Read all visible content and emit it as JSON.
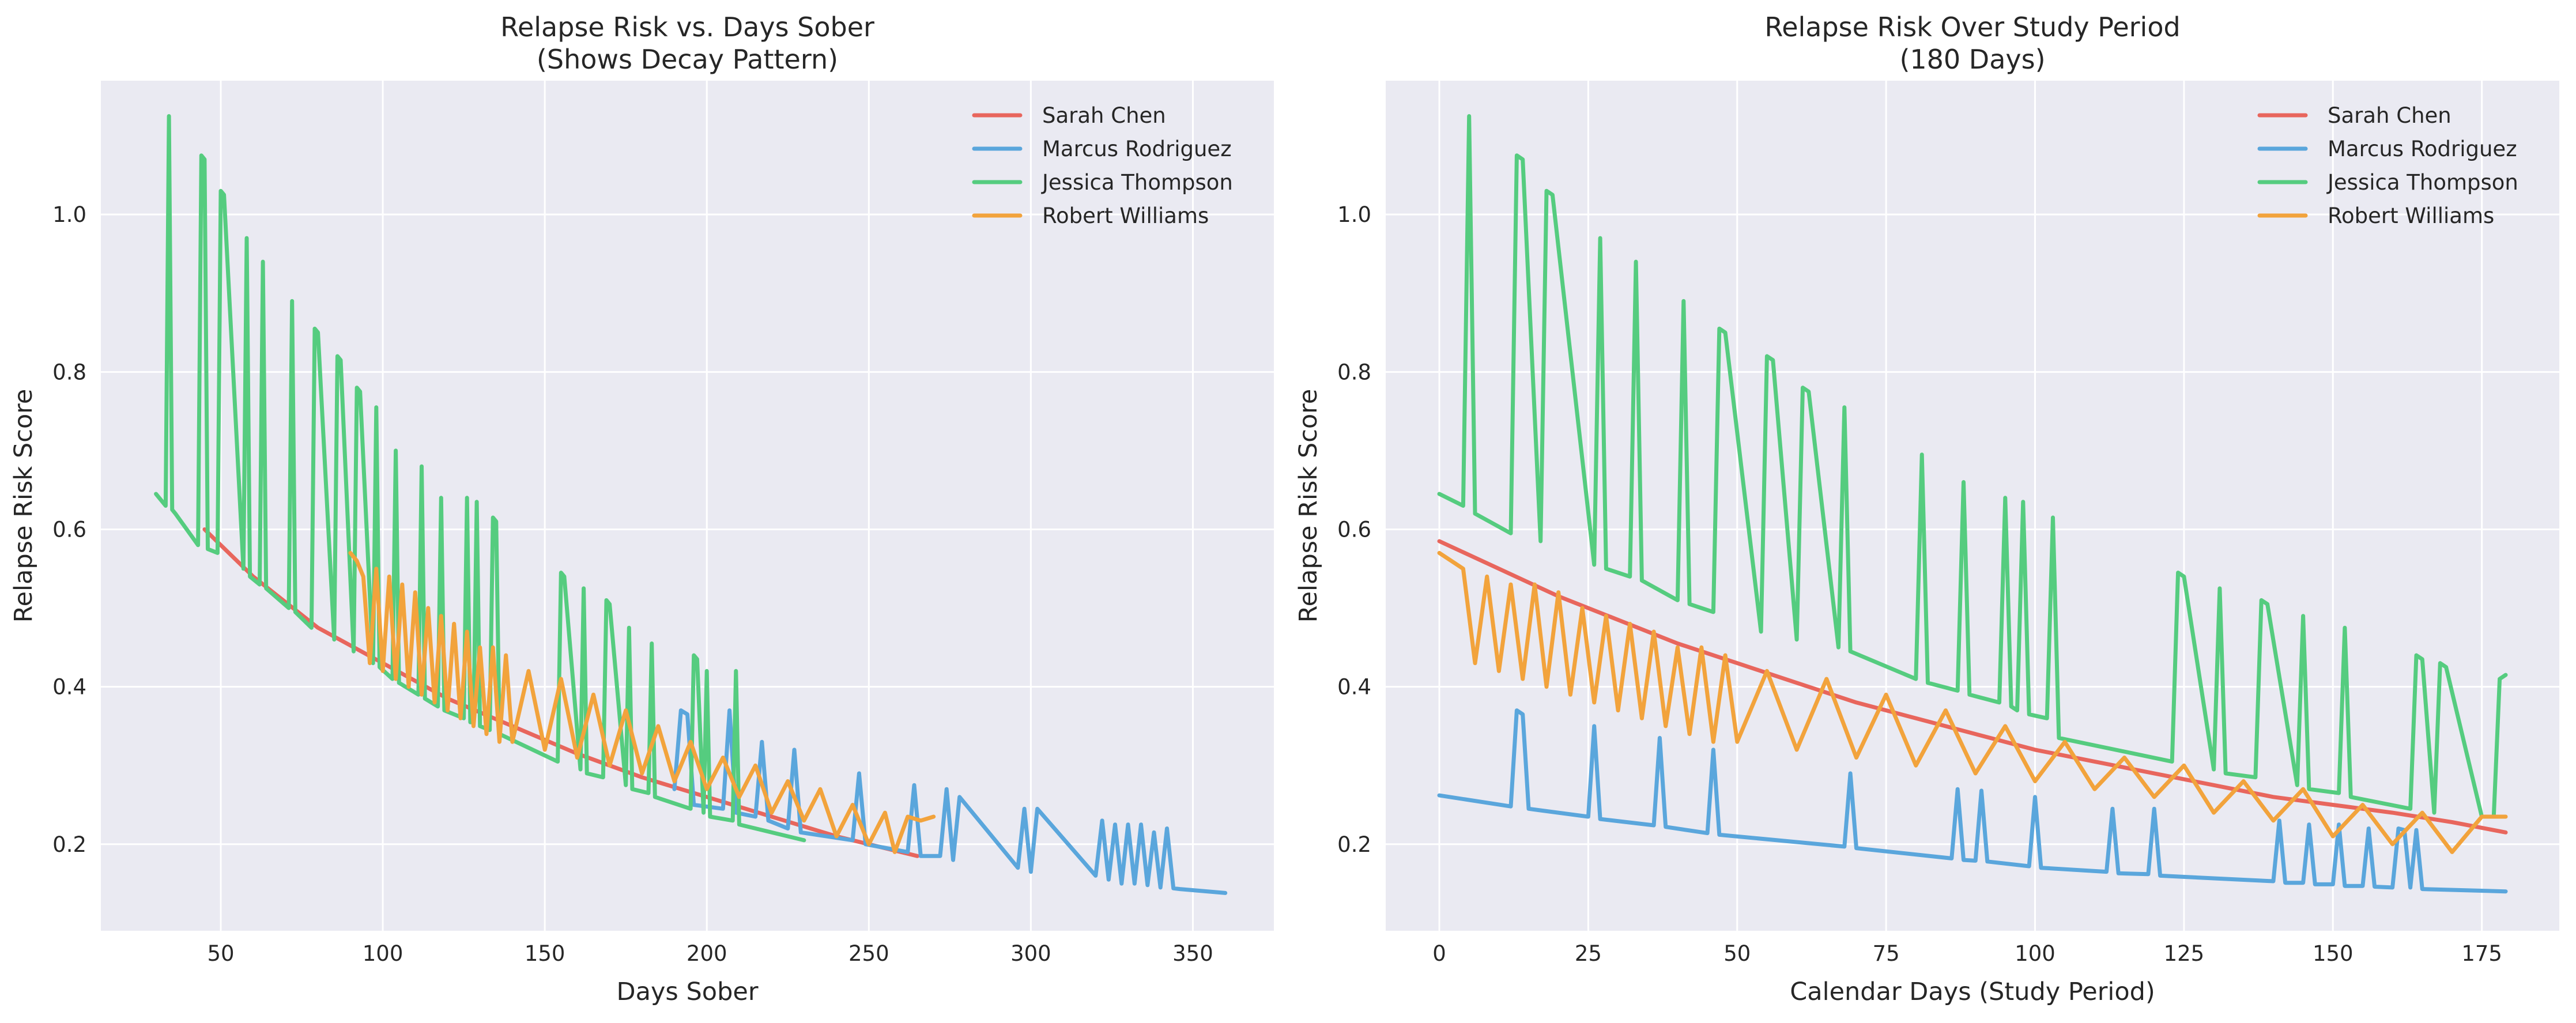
{
  "chart_data": [
    {
      "type": "line",
      "title": "Relapse Risk vs. Days Sober\n(Shows Decay Pattern)",
      "xlabel": "Days Sober",
      "ylabel": "Relapse Risk Score",
      "xlim": [
        13,
        375
      ],
      "ylim": [
        0.09,
        1.17
      ],
      "xticks": [
        50,
        100,
        150,
        200,
        250,
        300,
        350
      ],
      "yticks": [
        0.2,
        0.4,
        0.6,
        0.8,
        1.0
      ],
      "xtick_labels": [
        "50",
        "100",
        "150",
        "200",
        "250",
        "300",
        "350"
      ],
      "ytick_labels": [
        "0.2",
        "0.4",
        "0.6",
        "0.8",
        "1.0"
      ],
      "grid": true,
      "legend": "top-right",
      "series": [
        {
          "name": "Sarah Chen",
          "color": "#e8665d",
          "x": [
            45,
            60,
            80,
            100,
            120,
            140,
            160,
            180,
            200,
            220,
            240,
            265
          ],
          "y": [
            0.6,
            0.54,
            0.475,
            0.43,
            0.385,
            0.35,
            0.315,
            0.285,
            0.26,
            0.235,
            0.21,
            0.185
          ]
        },
        {
          "name": "Marcus Rodriguez",
          "color": "#5aa6dc",
          "x": [
            190,
            192,
            194,
            196,
            205,
            207,
            209,
            215,
            217,
            219,
            225,
            227,
            229,
            245,
            247,
            249,
            262,
            264,
            266,
            272,
            274,
            276,
            278,
            296,
            298,
            300,
            302,
            320,
            322,
            324,
            326,
            328,
            330,
            332,
            334,
            336,
            338,
            340,
            342,
            344,
            346,
            360
          ],
          "y": [
            0.27,
            0.37,
            0.365,
            0.25,
            0.245,
            0.37,
            0.24,
            0.235,
            0.33,
            0.23,
            0.22,
            0.32,
            0.215,
            0.205,
            0.29,
            0.2,
            0.19,
            0.275,
            0.185,
            0.185,
            0.27,
            0.18,
            0.26,
            0.17,
            0.245,
            0.165,
            0.245,
            0.16,
            0.23,
            0.155,
            0.225,
            0.15,
            0.225,
            0.15,
            0.225,
            0.148,
            0.215,
            0.145,
            0.22,
            0.144,
            0.143,
            0.138
          ]
        },
        {
          "name": "Jessica Thompson",
          "color": "#55cc7f",
          "x": [
            30,
            33,
            34,
            35,
            36,
            43,
            44,
            45,
            46,
            49,
            50,
            51,
            57,
            58,
            59,
            62,
            63,
            64,
            71,
            72,
            73,
            78,
            79,
            80,
            85,
            86,
            87,
            91,
            92,
            93,
            97,
            98,
            99,
            103,
            104,
            105,
            111,
            112,
            113,
            117,
            118,
            119,
            125,
            126,
            127,
            128,
            129,
            130,
            133,
            134,
            135,
            136,
            154,
            155,
            156,
            161,
            162,
            163,
            168,
            169,
            170,
            175,
            176,
            177,
            182,
            183,
            184,
            195,
            196,
            197,
            199,
            200,
            201,
            208,
            209,
            210,
            230
          ],
          "y": [
            0.645,
            0.63,
            1.125,
            0.625,
            0.62,
            0.58,
            1.075,
            1.07,
            0.575,
            0.57,
            1.03,
            1.025,
            0.55,
            0.97,
            0.54,
            0.53,
            0.94,
            0.525,
            0.5,
            0.89,
            0.495,
            0.475,
            0.855,
            0.85,
            0.46,
            0.82,
            0.815,
            0.445,
            0.78,
            0.775,
            0.43,
            0.755,
            0.425,
            0.41,
            0.7,
            0.405,
            0.39,
            0.68,
            0.385,
            0.375,
            0.64,
            0.37,
            0.36,
            0.64,
            0.355,
            0.355,
            0.635,
            0.35,
            0.345,
            0.615,
            0.61,
            0.34,
            0.305,
            0.545,
            0.54,
            0.295,
            0.525,
            0.29,
            0.285,
            0.51,
            0.505,
            0.275,
            0.475,
            0.27,
            0.265,
            0.455,
            0.26,
            0.245,
            0.44,
            0.435,
            0.24,
            0.42,
            0.235,
            0.23,
            0.42,
            0.225,
            0.205
          ]
        },
        {
          "name": "Robert Williams",
          "color": "#f2a33c",
          "x": [
            90,
            92,
            94,
            96,
            98,
            100,
            102,
            104,
            106,
            108,
            110,
            112,
            114,
            116,
            118,
            120,
            122,
            124,
            126,
            128,
            130,
            132,
            134,
            136,
            138,
            140,
            145,
            150,
            155,
            160,
            165,
            170,
            175,
            180,
            185,
            190,
            195,
            200,
            205,
            210,
            215,
            220,
            225,
            230,
            235,
            240,
            245,
            250,
            255,
            258,
            262,
            266,
            270
          ],
          "y": [
            0.57,
            0.56,
            0.54,
            0.43,
            0.55,
            0.42,
            0.54,
            0.41,
            0.53,
            0.4,
            0.52,
            0.39,
            0.5,
            0.38,
            0.49,
            0.37,
            0.48,
            0.36,
            0.47,
            0.35,
            0.45,
            0.34,
            0.45,
            0.33,
            0.44,
            0.33,
            0.42,
            0.32,
            0.41,
            0.31,
            0.39,
            0.3,
            0.37,
            0.29,
            0.35,
            0.28,
            0.33,
            0.27,
            0.31,
            0.26,
            0.3,
            0.24,
            0.28,
            0.23,
            0.27,
            0.21,
            0.25,
            0.2,
            0.24,
            0.19,
            0.235,
            0.23,
            0.235
          ]
        }
      ]
    },
    {
      "type": "line",
      "title": "Relapse Risk Over Study Period\n(180 Days)",
      "xlabel": "Calendar Days (Study Period)",
      "ylabel": "Relapse Risk Score",
      "xlim": [
        -9,
        188
      ],
      "ylim": [
        0.09,
        1.17
      ],
      "xticks": [
        0,
        25,
        50,
        75,
        100,
        125,
        150,
        175
      ],
      "yticks": [
        0.2,
        0.4,
        0.6,
        0.8,
        1.0
      ],
      "xtick_labels": [
        "0",
        "25",
        "50",
        "75",
        "100",
        "125",
        "150",
        "175"
      ],
      "ytick_labels": [
        "0.2",
        "0.4",
        "0.6",
        "0.8",
        "1.0"
      ],
      "grid": true,
      "legend": "top-right",
      "series": [
        {
          "name": "Sarah Chen",
          "color": "#e8665d",
          "x": [
            0,
            10,
            20,
            30,
            40,
            50,
            60,
            70,
            80,
            90,
            100,
            110,
            120,
            130,
            140,
            150,
            160,
            170,
            179
          ],
          "y": [
            0.585,
            0.55,
            0.515,
            0.485,
            0.455,
            0.43,
            0.405,
            0.38,
            0.36,
            0.34,
            0.32,
            0.305,
            0.29,
            0.275,
            0.26,
            0.25,
            0.24,
            0.228,
            0.215
          ]
        },
        {
          "name": "Marcus Rodriguez",
          "color": "#5aa6dc",
          "x": [
            0,
            12,
            13,
            14,
            15,
            25,
            26,
            27,
            36,
            37,
            38,
            45,
            46,
            47,
            68,
            69,
            70,
            86,
            87,
            88,
            90,
            91,
            92,
            99,
            100,
            101,
            112,
            113,
            114,
            119,
            120,
            121,
            140,
            141,
            142,
            145,
            146,
            147,
            150,
            151,
            152,
            155,
            156,
            157,
            160,
            161,
            162,
            163,
            164,
            165,
            179
          ],
          "y": [
            0.262,
            0.248,
            0.37,
            0.365,
            0.245,
            0.235,
            0.35,
            0.232,
            0.224,
            0.335,
            0.222,
            0.214,
            0.32,
            0.212,
            0.197,
            0.29,
            0.195,
            0.182,
            0.27,
            0.18,
            0.179,
            0.268,
            0.178,
            0.172,
            0.26,
            0.17,
            0.165,
            0.245,
            0.163,
            0.162,
            0.245,
            0.16,
            0.153,
            0.23,
            0.151,
            0.151,
            0.225,
            0.149,
            0.149,
            0.225,
            0.147,
            0.147,
            0.22,
            0.146,
            0.145,
            0.22,
            0.218,
            0.145,
            0.218,
            0.143,
            0.14
          ]
        },
        {
          "name": "Jessica Thompson",
          "color": "#55cc7f",
          "x": [
            0,
            4,
            5,
            6,
            12,
            13,
            14,
            17,
            18,
            19,
            26,
            27,
            28,
            32,
            33,
            34,
            40,
            41,
            42,
            46,
            47,
            48,
            54,
            55,
            56,
            60,
            61,
            62,
            67,
            68,
            69,
            80,
            81,
            82,
            87,
            88,
            89,
            94,
            95,
            96,
            97,
            98,
            99,
            102,
            103,
            104,
            123,
            124,
            125,
            130,
            131,
            132,
            137,
            138,
            139,
            144,
            145,
            146,
            151,
            152,
            153,
            163,
            164,
            165,
            167,
            168,
            169,
            175,
            176,
            177,
            178,
            179
          ],
          "y": [
            0.645,
            0.63,
            1.125,
            0.62,
            0.595,
            1.075,
            1.07,
            0.585,
            1.03,
            1.025,
            0.555,
            0.97,
            0.55,
            0.54,
            0.94,
            0.535,
            0.51,
            0.89,
            0.505,
            0.495,
            0.855,
            0.85,
            0.47,
            0.82,
            0.815,
            0.46,
            0.78,
            0.775,
            0.45,
            0.755,
            0.445,
            0.41,
            0.695,
            0.405,
            0.395,
            0.66,
            0.39,
            0.38,
            0.64,
            0.375,
            0.37,
            0.635,
            0.365,
            0.36,
            0.615,
            0.335,
            0.305,
            0.545,
            0.54,
            0.295,
            0.525,
            0.29,
            0.285,
            0.51,
            0.505,
            0.275,
            0.49,
            0.27,
            0.265,
            0.475,
            0.26,
            0.245,
            0.44,
            0.435,
            0.24,
            0.43,
            0.425,
            0.235,
            0.235,
            0.235,
            0.41,
            0.415
          ]
        },
        {
          "name": "Robert Williams",
          "color": "#f2a33c",
          "x": [
            0,
            2,
            4,
            6,
            8,
            10,
            12,
            14,
            16,
            18,
            20,
            22,
            24,
            26,
            28,
            30,
            32,
            34,
            36,
            38,
            40,
            42,
            44,
            46,
            48,
            50,
            55,
            60,
            65,
            70,
            75,
            80,
            85,
            90,
            95,
            100,
            105,
            110,
            115,
            120,
            125,
            130,
            135,
            140,
            145,
            150,
            155,
            160,
            165,
            170,
            175,
            179
          ],
          "y": [
            0.57,
            0.56,
            0.55,
            0.43,
            0.54,
            0.42,
            0.53,
            0.41,
            0.53,
            0.4,
            0.52,
            0.39,
            0.5,
            0.38,
            0.49,
            0.37,
            0.48,
            0.36,
            0.47,
            0.35,
            0.45,
            0.34,
            0.45,
            0.33,
            0.44,
            0.33,
            0.42,
            0.32,
            0.41,
            0.31,
            0.39,
            0.3,
            0.37,
            0.29,
            0.35,
            0.28,
            0.33,
            0.27,
            0.31,
            0.26,
            0.3,
            0.24,
            0.28,
            0.23,
            0.27,
            0.21,
            0.25,
            0.2,
            0.24,
            0.19,
            0.235,
            0.235
          ]
        }
      ]
    }
  ]
}
